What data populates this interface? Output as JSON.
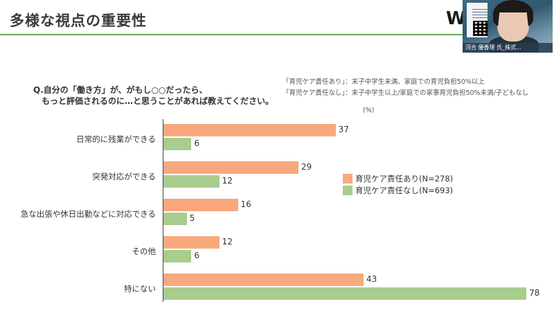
{
  "slide": {
    "title": "多様な視点の重要性",
    "logo": "W"
  },
  "presenter": {
    "name": "河合 優香理 氏_株式..."
  },
  "question": {
    "line1": "Q.自分の「働き方」が、がもし○○だったら、",
    "line2": "もっと評価されるのに…と思うことがあれば教えてください。"
  },
  "definitions": [
    "「育児ケア責任あり」：末子中学生未満、家庭での育児負担50%以上",
    "「育児ケア責任なし」：末子中学生以上/家庭での家事育児負担50%未満/子どもなし"
  ],
  "chart_data": {
    "type": "bar",
    "orientation": "horizontal",
    "unit": "(%)",
    "categories": [
      "日常的に残業ができる",
      "突発対応ができる",
      "急な出張や休日出勤などに対応できる",
      "その他",
      "特にない"
    ],
    "series": [
      {
        "name": "育児ケア責任あり(N=278)",
        "color": "#f7a97d",
        "values": [
          37,
          29,
          16,
          12,
          43
        ]
      },
      {
        "name": "育児ケア責任なし(N=693)",
        "color": "#a9cd8d",
        "values": [
          6,
          12,
          5,
          6,
          78
        ]
      }
    ],
    "xlim": [
      0,
      80
    ],
    "legend": "right"
  }
}
